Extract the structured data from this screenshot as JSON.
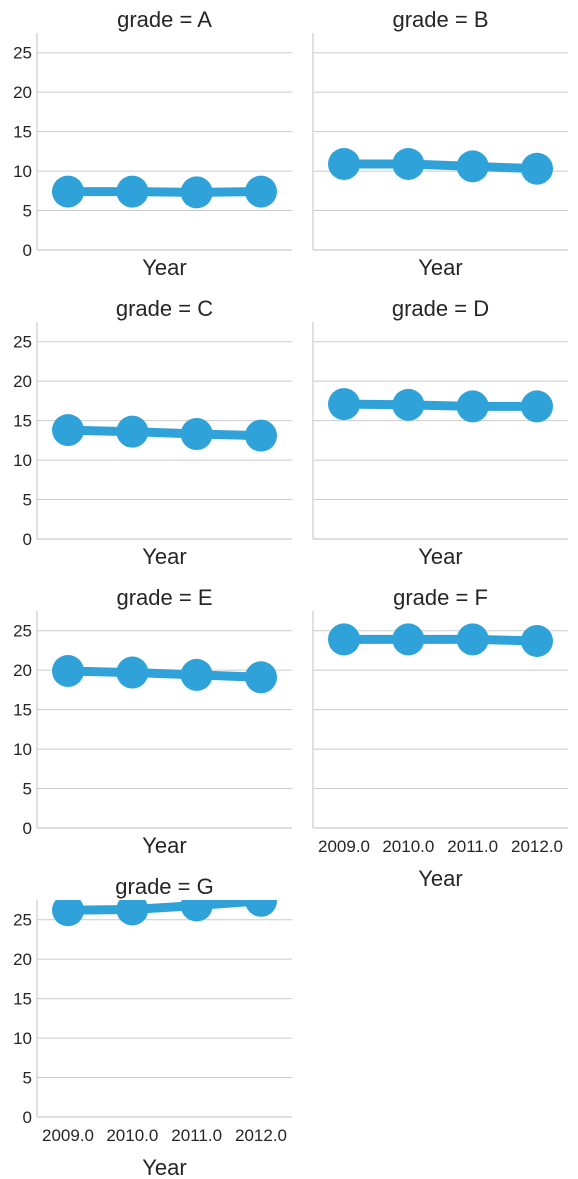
{
  "chart_data": {
    "type": "line",
    "layout": "facet-grid",
    "facet_variable": "grade",
    "ylim": [
      0,
      27.5
    ],
    "yticks": [
      0,
      5,
      10,
      15,
      20,
      25
    ],
    "x": [
      2009.0,
      2010.0,
      2011.0,
      2012.0
    ],
    "x_tick_labels": [
      "2009.0",
      "2010.0",
      "2011.0",
      "2012.0"
    ],
    "xlabel": "Year",
    "grid": "horizontal",
    "color": "#30a2da",
    "markers": true,
    "panels": [
      {
        "title": "grade = A",
        "values": [
          7.4,
          7.4,
          7.3,
          7.4
        ]
      },
      {
        "title": "grade = B",
        "values": [
          10.9,
          10.9,
          10.6,
          10.3
        ]
      },
      {
        "title": "grade = C",
        "values": [
          13.8,
          13.6,
          13.3,
          13.1
        ]
      },
      {
        "title": "grade = D",
        "values": [
          17.1,
          17.0,
          16.8,
          16.8
        ]
      },
      {
        "title": "grade = E",
        "values": [
          19.9,
          19.7,
          19.4,
          19.1
        ]
      },
      {
        "title": "grade = F",
        "values": [
          23.9,
          23.9,
          23.9,
          23.7
        ]
      },
      {
        "title": "grade = G",
        "values": [
          26.2,
          26.3,
          26.8,
          27.4
        ]
      }
    ]
  }
}
